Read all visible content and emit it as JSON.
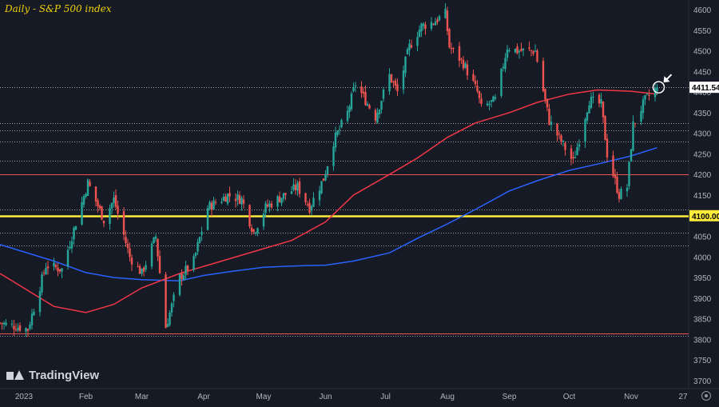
{
  "chart_data": {
    "type": "candlestick",
    "title": "Daily - S&P 500 index",
    "watermark": "TradingView",
    "y_axis": {
      "ylim": [
        3660,
        4610
      ],
      "ticks": [
        3700,
        3750,
        3800,
        3850,
        3900,
        3950,
        4000,
        4050,
        4100,
        4150,
        4200,
        4250,
        4300,
        4350,
        4400,
        4450,
        4500,
        4550,
        4600
      ]
    },
    "x_axis": {
      "ticks": [
        "2023",
        "Feb",
        "Mar",
        "Apr",
        "May",
        "Jun",
        "Jul",
        "Aug",
        "Sep",
        "Oct",
        "Nov",
        "27"
      ]
    },
    "last_price": {
      "value": 4411.54,
      "label": "4411.54"
    },
    "level_labels": [
      {
        "value": 4100,
        "label": "4100.00"
      }
    ],
    "colors": {
      "background": "#161a25",
      "up": "#26a69a",
      "down": "#ef5350",
      "ma_slow": "#2962ff",
      "ma_fast": "#f23645",
      "highlight_line": "#ffeb3b",
      "title": "#f0d000",
      "axis_text": "#b2b5be"
    },
    "horizontal_levels": [
      {
        "value": 4100,
        "style": "solid",
        "color": "#ffeb3b"
      },
      {
        "value": 4200,
        "style": "solid",
        "color": "#ef5350"
      },
      {
        "value": 3815,
        "style": "solid",
        "color": "#ef5350"
      },
      {
        "value": 4411.54,
        "style": "dotted",
        "color": "#9598a1"
      },
      {
        "value": 4325,
        "style": "dotted",
        "color": "#9598a1"
      },
      {
        "value": 4308,
        "style": "dotted",
        "color": "#9598a1"
      },
      {
        "value": 4280,
        "style": "dotted",
        "color": "#9598a1"
      },
      {
        "value": 4233,
        "style": "dotted",
        "color": "#9598a1"
      },
      {
        "value": 4115,
        "style": "dotted",
        "color": "#9598a1"
      },
      {
        "value": 4058,
        "style": "dotted",
        "color": "#9598a1"
      },
      {
        "value": 4028,
        "style": "dotted",
        "color": "#9598a1"
      },
      {
        "value": 3808,
        "style": "dotted",
        "color": "#9598a1"
      }
    ],
    "price_path": [
      [
        "2022-12-20",
        3840
      ],
      [
        "2023-01-03",
        3825
      ],
      [
        "2023-01-12",
        3980
      ],
      [
        "2023-01-20",
        3970
      ],
      [
        "2023-02-02",
        4180
      ],
      [
        "2023-02-10",
        4090
      ],
      [
        "2023-02-15",
        4140
      ],
      [
        "2023-02-23",
        4000
      ],
      [
        "2023-03-01",
        3960
      ],
      [
        "2023-03-08",
        4050
      ],
      [
        "2023-03-13",
        3830
      ],
      [
        "2023-03-20",
        3950
      ],
      [
        "2023-03-27",
        3990
      ],
      [
        "2023-04-03",
        4120
      ],
      [
        "2023-04-13",
        4150
      ],
      [
        "2023-04-20",
        4140
      ],
      [
        "2023-04-26",
        4060
      ],
      [
        "2023-05-02",
        4120
      ],
      [
        "2023-05-08",
        4140
      ],
      [
        "2023-05-18",
        4170
      ],
      [
        "2023-05-24",
        4120
      ],
      [
        "2023-05-31",
        4190
      ],
      [
        "2023-06-05",
        4280
      ],
      [
        "2023-06-12",
        4350
      ],
      [
        "2023-06-16",
        4420
      ],
      [
        "2023-06-26",
        4340
      ],
      [
        "2023-07-03",
        4440
      ],
      [
        "2023-07-07",
        4400
      ],
      [
        "2023-07-13",
        4510
      ],
      [
        "2023-07-19",
        4560
      ],
      [
        "2023-07-25",
        4570
      ],
      [
        "2023-07-31",
        4590
      ],
      [
        "2023-08-02",
        4510
      ],
      [
        "2023-08-09",
        4470
      ],
      [
        "2023-08-16",
        4400
      ],
      [
        "2023-08-18",
        4360
      ],
      [
        "2023-08-25",
        4380
      ],
      [
        "2023-08-31",
        4510
      ],
      [
        "2023-09-05",
        4500
      ],
      [
        "2023-09-14",
        4500
      ],
      [
        "2023-09-21",
        4330
      ],
      [
        "2023-09-27",
        4280
      ],
      [
        "2023-10-03",
        4230
      ],
      [
        "2023-10-11",
        4380
      ],
      [
        "2023-10-17",
        4370
      ],
      [
        "2023-10-20",
        4250
      ],
      [
        "2023-10-26",
        4150
      ],
      [
        "2023-10-30",
        4170
      ],
      [
        "2023-11-02",
        4320
      ],
      [
        "2023-11-08",
        4380
      ],
      [
        "2023-11-14",
        4411.54
      ]
    ],
    "ma_fast_path": [
      [
        "2022-12-20",
        3960
      ],
      [
        "2023-01-16",
        3880
      ],
      [
        "2023-02-01",
        3865
      ],
      [
        "2023-02-15",
        3885
      ],
      [
        "2023-03-01",
        3925
      ],
      [
        "2023-03-20",
        3960
      ],
      [
        "2023-04-10",
        3990
      ],
      [
        "2023-05-01",
        4020
      ],
      [
        "2023-05-15",
        4040
      ],
      [
        "2023-06-01",
        4085
      ],
      [
        "2023-06-15",
        4150
      ],
      [
        "2023-07-03",
        4200
      ],
      [
        "2023-07-17",
        4240
      ],
      [
        "2023-08-01",
        4290
      ],
      [
        "2023-08-15",
        4325
      ],
      [
        "2023-09-01",
        4350
      ],
      [
        "2023-09-15",
        4375
      ],
      [
        "2023-10-01",
        4395
      ],
      [
        "2023-10-15",
        4405
      ],
      [
        "2023-11-01",
        4402
      ],
      [
        "2023-11-14",
        4395
      ]
    ],
    "ma_slow_path": [
      [
        "2022-12-20",
        4030
      ],
      [
        "2023-01-16",
        3990
      ],
      [
        "2023-02-01",
        3962
      ],
      [
        "2023-02-15",
        3950
      ],
      [
        "2023-03-01",
        3945
      ],
      [
        "2023-03-20",
        3942
      ],
      [
        "2023-04-01",
        3955
      ],
      [
        "2023-04-15",
        3965
      ],
      [
        "2023-05-01",
        3975
      ],
      [
        "2023-05-15",
        3978
      ],
      [
        "2023-06-01",
        3980
      ],
      [
        "2023-06-15",
        3990
      ],
      [
        "2023-07-03",
        4010
      ],
      [
        "2023-07-17",
        4045
      ],
      [
        "2023-08-01",
        4080
      ],
      [
        "2023-08-15",
        4115
      ],
      [
        "2023-09-01",
        4160
      ],
      [
        "2023-09-15",
        4185
      ],
      [
        "2023-10-01",
        4210
      ],
      [
        "2023-10-15",
        4225
      ],
      [
        "2023-11-01",
        4245
      ],
      [
        "2023-11-14",
        4265
      ]
    ]
  }
}
